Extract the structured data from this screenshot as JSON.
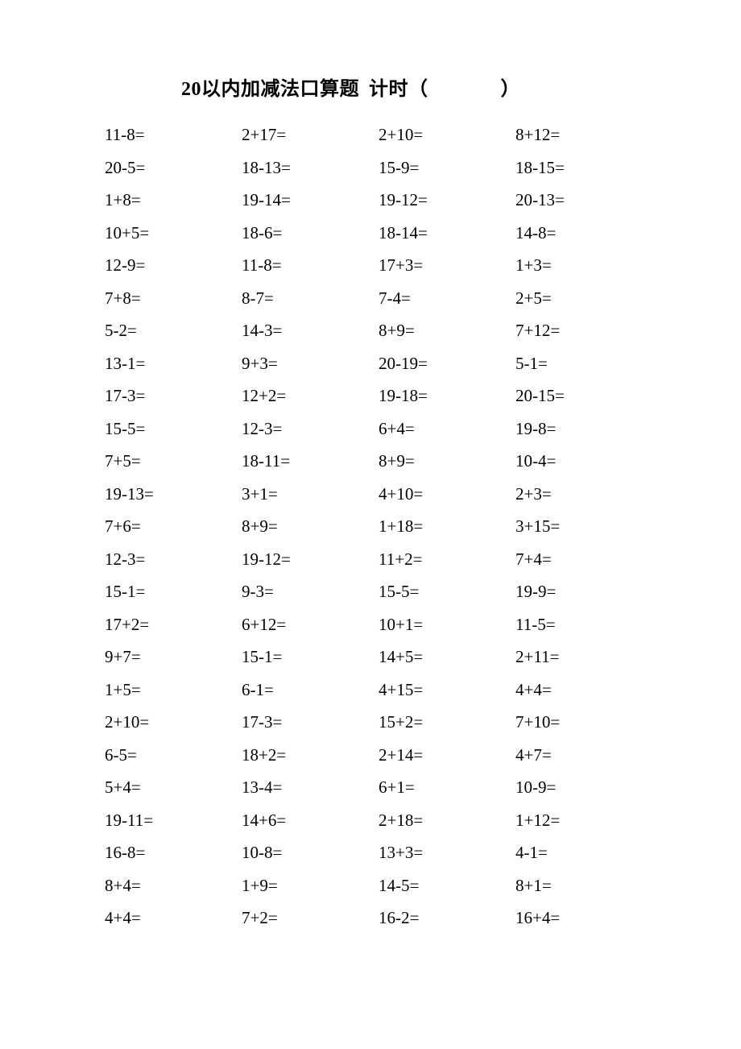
{
  "title_part1": "20以内加减法口算题",
  "title_part2": "计时（",
  "title_part3": "）",
  "rows": [
    [
      "11-8=",
      "2+17=",
      "2+10=",
      "8+12="
    ],
    [
      "20-5=",
      "18-13=",
      "15-9=",
      "18-15="
    ],
    [
      "1+8=",
      "19-14=",
      "19-12=",
      "20-13="
    ],
    [
      "10+5=",
      "18-6=",
      "18-14=",
      "14-8="
    ],
    [
      "12-9=",
      "11-8=",
      "17+3=",
      "1+3="
    ],
    [
      "7+8=",
      "8-7=",
      "7-4=",
      "2+5="
    ],
    [
      "5-2=",
      "14-3=",
      "8+9=",
      "7+12="
    ],
    [
      "13-1=",
      "9+3=",
      "20-19=",
      "5-1="
    ],
    [
      "17-3=",
      "12+2=",
      "19-18=",
      "20-15="
    ],
    [
      "15-5=",
      "12-3=",
      "6+4=",
      "19-8="
    ],
    [
      "7+5=",
      "18-11=",
      "8+9=",
      "10-4="
    ],
    [
      "19-13=",
      "3+1=",
      "4+10=",
      "2+3="
    ],
    [
      "7+6=",
      "8+9=",
      "1+18=",
      "3+15="
    ],
    [
      "12-3=",
      "19-12=",
      "11+2=",
      "7+4="
    ],
    [
      "15-1=",
      "9-3=",
      "15-5=",
      "19-9="
    ],
    [
      "17+2=",
      "6+12=",
      "10+1=",
      "11-5="
    ],
    [
      "9+7=",
      "15-1=",
      "14+5=",
      "2+11="
    ],
    [
      "1+5=",
      "6-1=",
      "4+15=",
      "4+4="
    ],
    [
      "2+10=",
      "17-3=",
      "15+2=",
      "7+10="
    ],
    [
      "6-5=",
      "18+2=",
      "2+14=",
      "4+7="
    ],
    [
      "5+4=",
      "13-4=",
      "6+1=",
      "10-9="
    ],
    [
      "19-11=",
      "14+6=",
      "2+18=",
      "1+12="
    ],
    [
      "16-8=",
      "10-8=",
      "13+3=",
      "4-1="
    ],
    [
      "8+4=",
      "1+9=",
      "14-5=",
      "8+1="
    ],
    [
      "4+4=",
      "7+2=",
      "16-2=",
      "16+4="
    ]
  ]
}
